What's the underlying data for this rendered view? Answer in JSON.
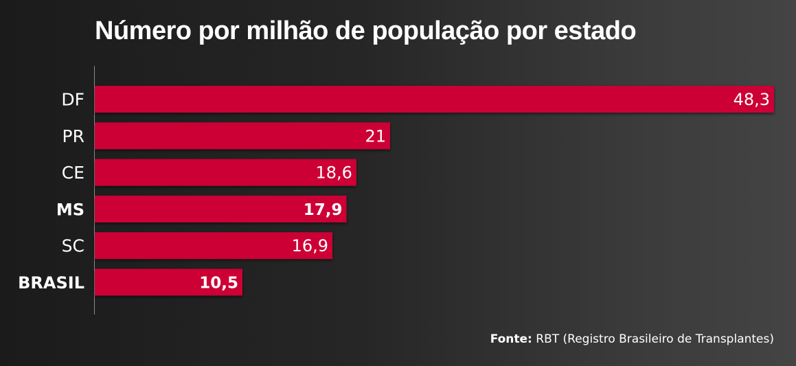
{
  "chart_data": {
    "type": "bar",
    "orientation": "horizontal",
    "title": "Número por milhão de população por estado",
    "categories": [
      "DF",
      "PR",
      "CE",
      "MS",
      "SC",
      "BRASIL"
    ],
    "values": [
      48.3,
      21,
      18.6,
      17.9,
      16.9,
      10.5
    ],
    "value_labels": [
      "48,3",
      "21",
      "18,6",
      "17,9",
      "16,9",
      "10,5"
    ],
    "highlighted_categories": [
      "MS",
      "BRASIL"
    ],
    "xlim": [
      0,
      48.3
    ],
    "grid": false,
    "legend": "none",
    "bar_color": "#cc0536"
  },
  "source": {
    "label": "Fonte:",
    "text": "RBT (Registro Brasileiro de Transplantes)"
  }
}
